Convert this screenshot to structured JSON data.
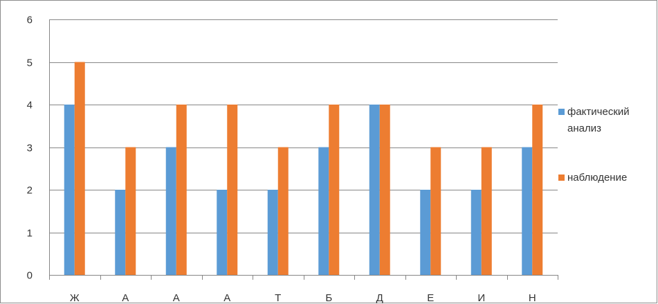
{
  "chart_data": {
    "type": "bar",
    "title": "",
    "xlabel": "",
    "ylabel": "",
    "categories": [
      "Ж",
      "А",
      "А",
      "А",
      "Т",
      "Б",
      "Д",
      "Е",
      "И",
      "Н"
    ],
    "series": [
      {
        "name": "фактический анализ",
        "name_lines": [
          "фактический",
          "анализ"
        ],
        "color": "#5b9bd5",
        "values": [
          4,
          2,
          3,
          2,
          2,
          3,
          4,
          2,
          2,
          3
        ]
      },
      {
        "name": "наблюдение",
        "name_lines": [
          "наблюдение"
        ],
        "color": "#ed7d31",
        "values": [
          5,
          3,
          4,
          4,
          3,
          4,
          4,
          3,
          3,
          4
        ]
      }
    ],
    "ylim": [
      0,
      6
    ],
    "yticks": [
      0,
      1,
      2,
      3,
      4,
      5,
      6
    ],
    "grid": true,
    "legend_position": "right"
  }
}
